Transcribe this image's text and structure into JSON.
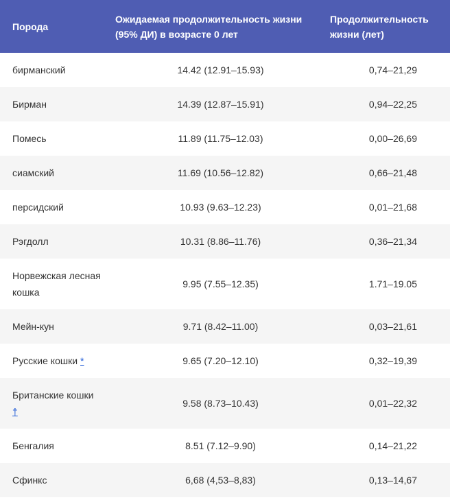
{
  "table": {
    "headers": [
      "Порода",
      "Ожидаемая продолжительность жизни (95% ДИ) в возрасте 0 лет",
      "Продолжительность жизни (лет)"
    ],
    "rows": [
      {
        "breed": "бирманский",
        "expectancy": "14.42 (12.91–15.93)",
        "range": "0,74–21,29"
      },
      {
        "breed": "Бирман",
        "expectancy": "14.39 (12.87–15.91)",
        "range": "0,94–22,25"
      },
      {
        "breed": "Помесь",
        "expectancy": "11.89 (11.75–12.03)",
        "range": "0,00–26,69"
      },
      {
        "breed": "сиамский",
        "expectancy": "11.69 (10.56–12.82)",
        "range": "0,66–21,48"
      },
      {
        "breed": "персидский",
        "expectancy": "10.93 (9.63–12.23)",
        "range": "0,01–21,68"
      },
      {
        "breed": "Рэгдолл",
        "expectancy": "10.31 (8.86–11.76)",
        "range": "0,36–21,34"
      },
      {
        "breed": "Норвежская лесная кошка",
        "expectancy": "9.95 (7.55–12.35)",
        "range": "1.71–19.05"
      },
      {
        "breed": "Мейн-кун",
        "expectancy": "9.71 (8.42–11.00)",
        "range": "0,03–21,61"
      },
      {
        "breed": "Русские кошки",
        "note": "*",
        "expectancy": "9.65 (7.20–12.10)",
        "range": "0,32–19,39"
      },
      {
        "breed": "Британские кошки",
        "note": "†",
        "expectancy": "9.58 (8.73–10.43)",
        "range": "0,01–22,32"
      },
      {
        "breed": "Бенгалия",
        "expectancy": "8.51 (7.12–9.90)",
        "range": "0,14–21,22"
      },
      {
        "breed": "Сфинкс",
        "expectancy": "6,68 (4,53–8,83)",
        "range": "0,13–14,67"
      }
    ]
  },
  "colors": {
    "header_bg": "#4f5db3",
    "row_alt_bg": "#f5f5f5",
    "link": "#1a57d6"
  }
}
